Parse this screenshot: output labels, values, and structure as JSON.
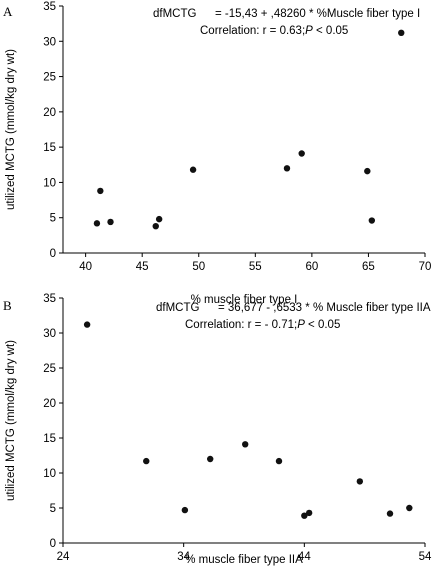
{
  "chart_data": [
    {
      "type": "scatter",
      "panel_label": "A",
      "annotation": {
        "line1_name": "dfMCTG",
        "line1_eq": "= -15,43 + ,48260 * %Muscle fiber type I",
        "line2_prefix": "Correlation: r = 0.63;",
        "line2_p": "P",
        "line2_suffix": " < 0.05"
      },
      "xlabel": "% muscle fiber type I",
      "ylabel": "utilized MCTG (mmol/kg dry wt)",
      "xlim": [
        38,
        70
      ],
      "ylim": [
        0,
        35
      ],
      "xticks": [
        40,
        45,
        50,
        55,
        60,
        65,
        70
      ],
      "yticks": [
        0,
        5,
        10,
        15,
        20,
        25,
        30,
        35
      ],
      "grid": false,
      "points": [
        {
          "x": 41.0,
          "y": 4.2
        },
        {
          "x": 41.3,
          "y": 8.8
        },
        {
          "x": 42.2,
          "y": 4.4
        },
        {
          "x": 46.2,
          "y": 3.8
        },
        {
          "x": 46.5,
          "y": 4.8
        },
        {
          "x": 49.5,
          "y": 11.8
        },
        {
          "x": 57.8,
          "y": 12.0
        },
        {
          "x": 59.1,
          "y": 14.1
        },
        {
          "x": 64.9,
          "y": 11.6
        },
        {
          "x": 65.3,
          "y": 4.6
        },
        {
          "x": 67.9,
          "y": 31.2
        }
      ]
    },
    {
      "type": "scatter",
      "panel_label": "B",
      "annotation": {
        "line1_name": "dfMCTG",
        "line1_eq": "= 36,677 - ,6533  * % Muscle fiber type IIA",
        "line2_prefix": "Correlation: r = - 0.71;",
        "line2_p": "P",
        "line2_suffix": " < 0.05"
      },
      "xlabel": "% muscle fiber type IIA",
      "ylabel": "utilized MCTG (mmol/kg dry wt)",
      "xlim": [
        24,
        54
      ],
      "ylim": [
        0,
        35
      ],
      "xticks": [
        24,
        34,
        44,
        54
      ],
      "yticks": [
        0,
        5,
        10,
        15,
        20,
        25,
        30,
        35
      ],
      "grid": false,
      "points": [
        {
          "x": 26.0,
          "y": 31.2
        },
        {
          "x": 30.9,
          "y": 11.7
        },
        {
          "x": 34.1,
          "y": 4.7
        },
        {
          "x": 36.2,
          "y": 12.0
        },
        {
          "x": 39.1,
          "y": 14.1
        },
        {
          "x": 41.9,
          "y": 11.7
        },
        {
          "x": 44.0,
          "y": 3.9
        },
        {
          "x": 44.4,
          "y": 4.3
        },
        {
          "x": 48.6,
          "y": 8.8
        },
        {
          "x": 51.1,
          "y": 4.2
        },
        {
          "x": 52.7,
          "y": 5.0
        }
      ]
    }
  ]
}
